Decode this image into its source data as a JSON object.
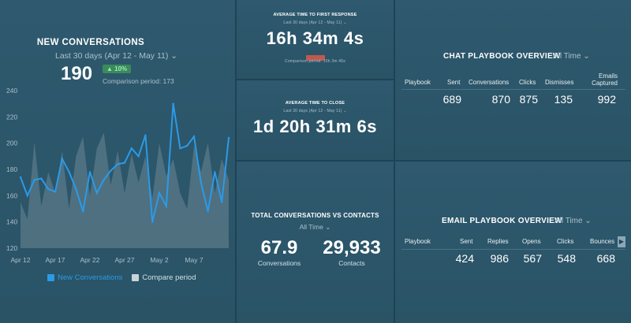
{
  "new_conversations": {
    "title": "NEW CONVERSATIONS",
    "date_range": "Last 30 days (Apr 12 - May 11)",
    "value": "190",
    "change": "10%",
    "comparison": "Comparison period: 173",
    "legend": {
      "current": "New Conversations",
      "compare": "Compare period"
    },
    "colors": {
      "current": "#2b9ae8",
      "compare": "#8fa4ad"
    }
  },
  "chart_data": {
    "type": "line",
    "ylim": [
      120,
      240
    ],
    "yticks": [
      120,
      140,
      160,
      180,
      200,
      220,
      240
    ],
    "xticks": [
      "Apr 12",
      "Apr 17",
      "Apr 22",
      "Apr 27",
      "May 2",
      "May 7"
    ],
    "series": [
      {
        "name": "New Conversations",
        "values": [
          174,
          160,
          172,
          173,
          165,
          163,
          188,
          178,
          165,
          148,
          178,
          162,
          172,
          179,
          184,
          185,
          196,
          190,
          206,
          140,
          162,
          152,
          230,
          196,
          198,
          205,
          170,
          148,
          178,
          155,
          204
        ]
      },
      {
        "name": "Compare period",
        "values": [
          155,
          142,
          201,
          152,
          178,
          162,
          194,
          150,
          190,
          205,
          160,
          196,
          208,
          168,
          194,
          162,
          192,
          170,
          190,
          158,
          200,
          175,
          188,
          162,
          150,
          198,
          178,
          200,
          162,
          188,
          172
        ]
      }
    ]
  },
  "first_response": {
    "title": "AVERAGE TIME TO FIRST RESPONSE",
    "date_range": "Last 30 days (Apr 12 - May 11)",
    "value": "16h 34m 4s",
    "comparison": "Comparison period: 15h 3m 45s",
    "badge_color": "#c0594d"
  },
  "time_to_close": {
    "title": "AVERAGE TIME TO CLOSE",
    "date_range": "Last 30 days (Apr 12 - May 11)",
    "value": "1d 20h 31m 6s"
  },
  "totals": {
    "title": "TOTAL CONVERSATIONS VS CONTACTS",
    "range": "All Time",
    "conversations": {
      "value": "67.9",
      "label": "Conversations"
    },
    "contacts": {
      "value": "29,933",
      "label": "Contacts"
    }
  },
  "chat_playbook": {
    "title": "CHAT PLAYBOOK OVERVIEW",
    "range": "All Time",
    "headers": {
      "playbook": "Playbook",
      "sent": "Sent",
      "conversations": "Conversations",
      "clicks": "Clicks",
      "dismisses": "Dismisses",
      "emails": "Emails Captured"
    },
    "row": {
      "sent": "689",
      "conversations": "870",
      "clicks": "875",
      "dismisses": "135",
      "emails": "992"
    }
  },
  "email_playbook": {
    "title": "EMAIL PLAYBOOK OVERVIEW",
    "range": "All Time",
    "headers": {
      "playbook": "Playbook",
      "sent": "Sent",
      "replies": "Replies",
      "opens": "Opens",
      "clicks": "Clicks",
      "bounces": "Bounces"
    },
    "row": {
      "sent": "424",
      "replies": "986",
      "opens": "567",
      "clicks": "548",
      "bounces": "668"
    }
  }
}
